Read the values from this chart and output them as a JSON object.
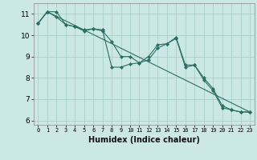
{
  "xlabel": "Humidex (Indice chaleur)",
  "background_color": "#cce8e4",
  "grid_color": "#aacfca",
  "line_color": "#2a6e65",
  "xlim": [
    -0.5,
    23.5
  ],
  "ylim": [
    5.8,
    11.5
  ],
  "yticks": [
    6,
    7,
    8,
    9,
    10,
    11
  ],
  "xticks": [
    0,
    1,
    2,
    3,
    4,
    5,
    6,
    7,
    8,
    9,
    10,
    11,
    12,
    13,
    14,
    15,
    16,
    17,
    18,
    19,
    20,
    21,
    22,
    23
  ],
  "series1_x": [
    0,
    1,
    2,
    3,
    4,
    5,
    6,
    7,
    8,
    9,
    10,
    11,
    12,
    13,
    14,
    15,
    16,
    17,
    18,
    19,
    20,
    21,
    22,
    23
  ],
  "series1_y": [
    10.55,
    11.1,
    11.1,
    10.5,
    10.4,
    10.25,
    10.3,
    10.25,
    8.5,
    8.5,
    8.65,
    8.7,
    9.0,
    9.55,
    9.6,
    9.85,
    8.5,
    8.6,
    8.0,
    7.5,
    6.7,
    6.5,
    6.4,
    6.4
  ],
  "series2_x": [
    0,
    1,
    2,
    3,
    4,
    5,
    6,
    7,
    8,
    9,
    10,
    11,
    12,
    13,
    14,
    15,
    16,
    17,
    18,
    19,
    20,
    21,
    22,
    23
  ],
  "series2_y": [
    10.55,
    11.1,
    10.85,
    10.5,
    10.4,
    10.2,
    10.3,
    10.2,
    9.7,
    9.0,
    9.0,
    8.7,
    8.85,
    9.4,
    9.6,
    9.9,
    8.6,
    8.6,
    7.9,
    7.4,
    6.6,
    6.5,
    6.4,
    6.4
  ],
  "series3_x": [
    0,
    1,
    23
  ],
  "series3_y": [
    10.55,
    11.1,
    6.4
  ]
}
